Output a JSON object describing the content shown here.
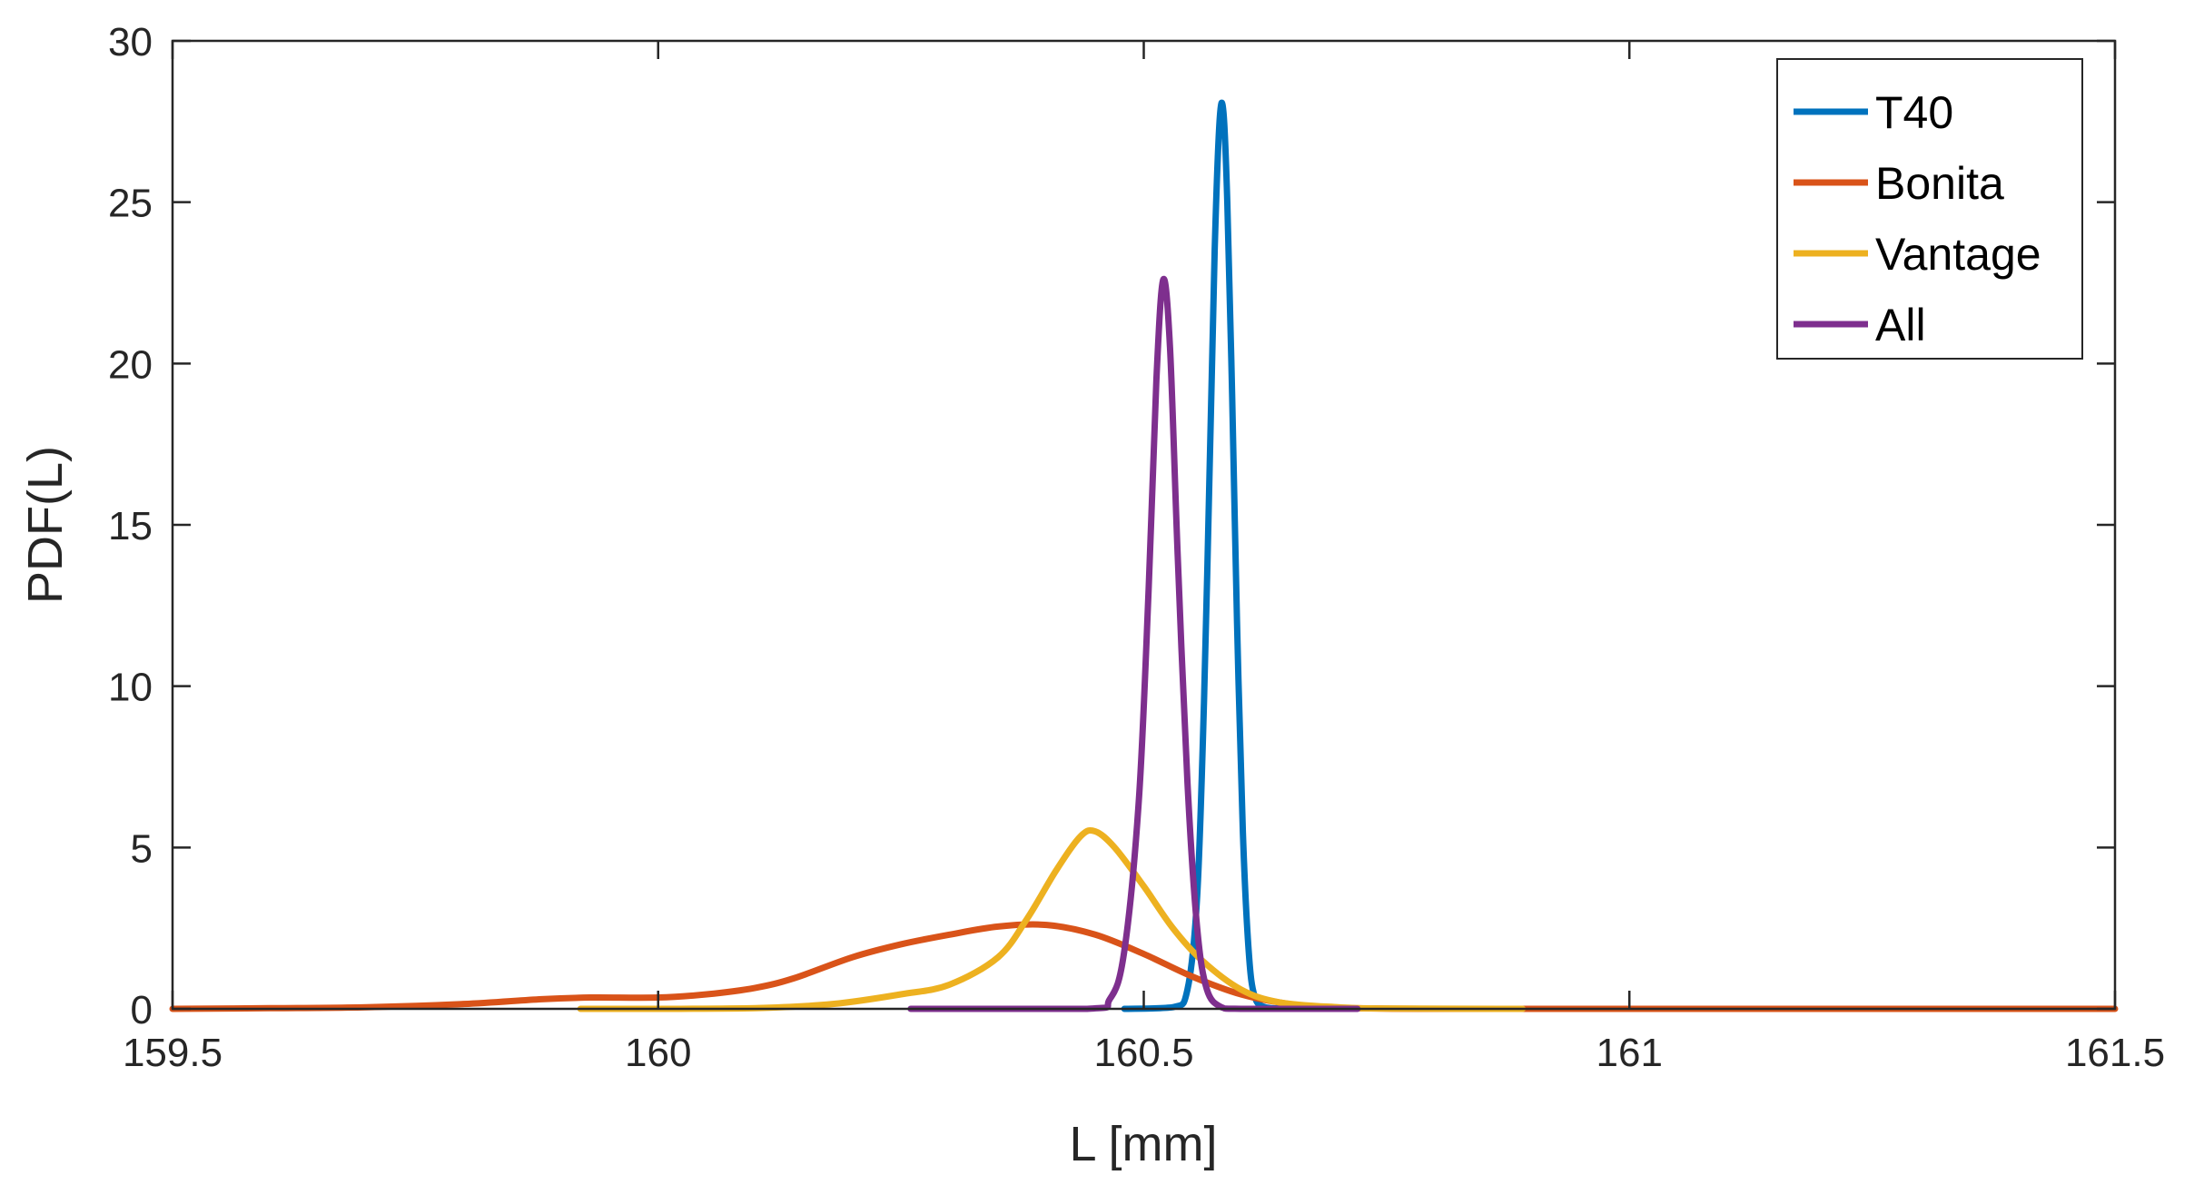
{
  "chart_data": {
    "type": "line",
    "title": "",
    "xlabel": "L [mm]",
    "ylabel": "PDF(L)",
    "xlim": [
      159.5,
      161.5
    ],
    "ylim": [
      0,
      30
    ],
    "xticks": [
      159.5,
      160,
      160.5,
      161,
      161.5
    ],
    "xtick_labels": [
      "159.5",
      "160",
      "160.5",
      "161",
      "161.5"
    ],
    "yticks": [
      0,
      5,
      10,
      15,
      20,
      25,
      30
    ],
    "ytick_labels": [
      "0",
      "5",
      "10",
      "15",
      "20",
      "25",
      "30"
    ],
    "grid": false,
    "legend_position": "top-right",
    "series": [
      {
        "name": "T40",
        "color": "#0072BD",
        "points": [
          [
            160.48,
            0
          ],
          [
            160.53,
            0.05
          ],
          [
            160.545,
            0.6
          ],
          [
            160.555,
            3.5
          ],
          [
            160.562,
            9.5
          ],
          [
            160.568,
            17
          ],
          [
            160.573,
            23.5
          ],
          [
            160.578,
            27.5
          ],
          [
            160.582,
            27.8
          ],
          [
            160.586,
            25
          ],
          [
            160.591,
            19
          ],
          [
            160.596,
            12
          ],
          [
            160.602,
            5.5
          ],
          [
            160.608,
            1.8
          ],
          [
            160.614,
            0.4
          ],
          [
            160.625,
            0.05
          ],
          [
            160.65,
            0
          ]
        ]
      },
      {
        "name": "Bonita",
        "color": "#D95319",
        "points": [
          [
            159.5,
            0
          ],
          [
            159.6,
            0.02
          ],
          [
            159.7,
            0.05
          ],
          [
            159.8,
            0.15
          ],
          [
            159.88,
            0.3
          ],
          [
            159.93,
            0.35
          ],
          [
            160.0,
            0.35
          ],
          [
            160.05,
            0.45
          ],
          [
            160.1,
            0.65
          ],
          [
            160.14,
            0.95
          ],
          [
            160.2,
            1.6
          ],
          [
            160.25,
            2.0
          ],
          [
            160.3,
            2.3
          ],
          [
            160.35,
            2.55
          ],
          [
            160.4,
            2.6
          ],
          [
            160.45,
            2.3
          ],
          [
            160.5,
            1.7
          ],
          [
            160.55,
            1.0
          ],
          [
            160.6,
            0.45
          ],
          [
            160.65,
            0.15
          ],
          [
            160.7,
            0.03
          ],
          [
            160.8,
            0
          ],
          [
            161.0,
            0
          ],
          [
            161.5,
            0
          ]
        ]
      },
      {
        "name": "Vantage",
        "color": "#EDB120",
        "points": [
          [
            159.92,
            0
          ],
          [
            160.0,
            0
          ],
          [
            160.1,
            0.02
          ],
          [
            160.18,
            0.15
          ],
          [
            160.25,
            0.45
          ],
          [
            160.3,
            0.75
          ],
          [
            160.35,
            1.6
          ],
          [
            160.38,
            2.8
          ],
          [
            160.41,
            4.3
          ],
          [
            160.435,
            5.35
          ],
          [
            160.45,
            5.5
          ],
          [
            160.47,
            5.0
          ],
          [
            160.5,
            3.8
          ],
          [
            160.53,
            2.5
          ],
          [
            160.56,
            1.5
          ],
          [
            160.6,
            0.6
          ],
          [
            160.64,
            0.2
          ],
          [
            160.7,
            0.05
          ],
          [
            160.75,
            0.01
          ],
          [
            160.89,
            0
          ]
        ]
      },
      {
        "name": "All",
        "color": "#7E2F8E",
        "points": [
          [
            160.26,
            0
          ],
          [
            160.44,
            0
          ],
          [
            160.465,
            0.3
          ],
          [
            160.48,
            1.8
          ],
          [
            160.495,
            6.5
          ],
          [
            160.505,
            13
          ],
          [
            160.513,
            19.5
          ],
          [
            160.52,
            22.6
          ],
          [
            160.527,
            20.5
          ],
          [
            160.535,
            14
          ],
          [
            160.545,
            7
          ],
          [
            160.555,
            2.5
          ],
          [
            160.565,
            0.6
          ],
          [
            160.58,
            0.05
          ],
          [
            160.6,
            0
          ],
          [
            160.72,
            0
          ]
        ]
      }
    ]
  }
}
